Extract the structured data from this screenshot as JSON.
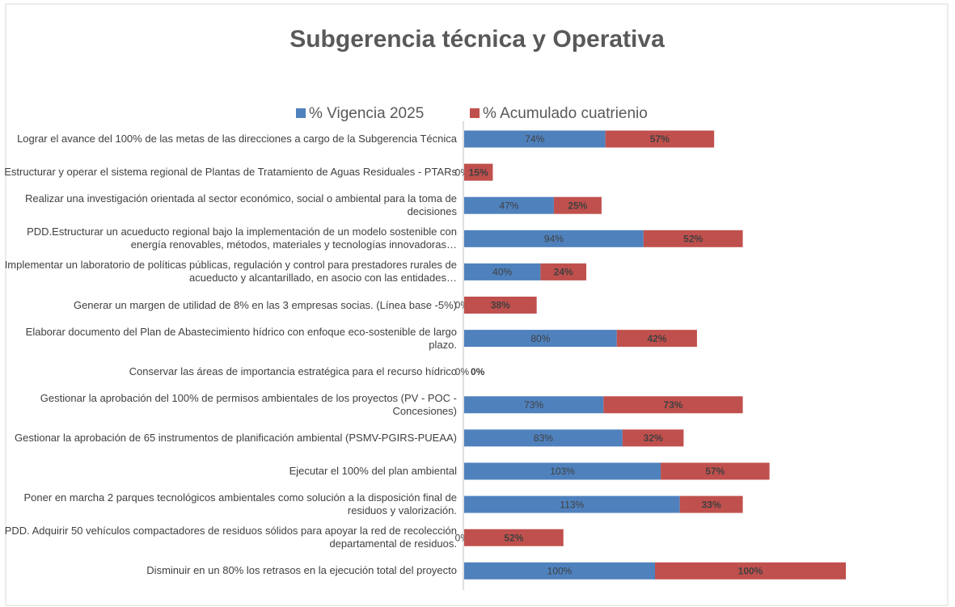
{
  "chart_data": {
    "type": "stacked-bar-horizontal",
    "title": "Subgerencia técnica y Operativa",
    "categories": [
      "Lograr el avance del 100% de las metas de las direcciones a cargo de la Subgerencia Técnica",
      "Estructurar y operar el sistema regional de Plantas de Tratamiento de Aguas Residuales - PTARs",
      "Realizar una investigación orientada al sector económico, social o ambiental para la toma de decisiones",
      "PDD.Estructurar un acueducto regional bajo la implementación de un modelo sostenible con energía renovables, métodos, materiales y tecnologías innovadoras…",
      "Implementar un laboratorio de políticas públicas, regulación y control para prestadores rurales de acueducto y alcantarillado, en asocio con las entidades…",
      "Generar un margen de utilidad de 8% en las 3 empresas socias. (Línea base -5%)",
      "Elaborar documento del Plan de Abastecimiento hídrico con enfoque eco-sostenible de largo plazo.",
      "Conservar las áreas de importancia estratégica para el recurso hídrico",
      "Gestionar la aprobación del 100% de permisos ambientales de los proyectos  (PV - POC - Concesiones)",
      "Gestionar la aprobación de 65 instrumentos de planificación ambiental (PSMV-PGIRS-PUEAA)",
      "Ejecutar el 100% del plan ambiental",
      "Poner en marcha 2 parques tecnológicos ambientales como solución a la disposición final de residuos y valorización.",
      "PDD. Adquirir 50 vehículos compactadores de residuos sólidos para apoyar la red de recolección departamental de residuos.",
      "Disminuir en un 80% los retrasos en la ejecución total del proyecto"
    ],
    "series": [
      {
        "name": "% Vigencia 2025",
        "color": "#4f81bd",
        "values": [
          74,
          0,
          47,
          94,
          40,
          0,
          80,
          0,
          73,
          83,
          103,
          113,
          0,
          100
        ],
        "value_labels": [
          "74%",
          "0%",
          "47%",
          "94%",
          "40%",
          "0%",
          "80%",
          "0%",
          "73%",
          "83%",
          "103%",
          "113%",
          "0%",
          "100%"
        ]
      },
      {
        "name": "% Acumulado cuatrienio",
        "color": "#c0504d",
        "values": [
          57,
          15,
          25,
          52,
          24,
          38,
          42,
          0,
          73,
          32,
          57,
          33,
          52,
          100
        ],
        "value_labels": [
          "57%",
          "15%",
          "25%",
          "52%",
          "24%",
          "38%",
          "42%",
          "0%",
          "73%",
          "32%",
          "57%",
          "33%",
          "52%",
          "100%"
        ]
      }
    ],
    "legend": "top"
  }
}
